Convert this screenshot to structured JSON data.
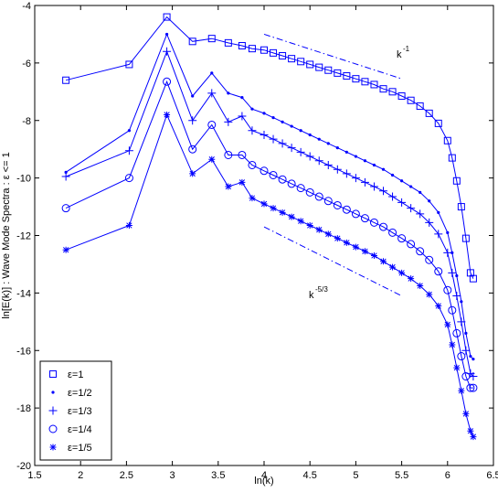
{
  "chart_data": {
    "type": "line",
    "title": "",
    "xlabel": "ln(k)",
    "ylabel": "ln[E(k)] : Wave Mode Spectra :  ε <= 1",
    "xlim": [
      1.5,
      6.5
    ],
    "ylim": [
      -20,
      -4
    ],
    "xticks": [
      "1.5",
      "2",
      "2.5",
      "3",
      "3.5",
      "4",
      "4.5",
      "5",
      "5.5",
      "6",
      "6.5"
    ],
    "yticks": [
      "-4",
      "-6",
      "-8",
      "-10",
      "-12",
      "-14",
      "-16",
      "-18",
      "-20"
    ],
    "line_color": "#0000ff",
    "legend_position": "bottom-left",
    "annotations": [
      {
        "text": "k",
        "exponent": "-1"
      },
      {
        "text": "k",
        "exponent": "-5/3"
      }
    ],
    "reference_lines": [
      {
        "name": "k^-1",
        "x": [
          4.0,
          5.5
        ],
        "y": [
          -5.0,
          -6.55
        ],
        "style": "dashdot"
      },
      {
        "name": "k^-5/3",
        "x": [
          4.0,
          5.5
        ],
        "y": [
          -11.7,
          -14.1
        ],
        "style": "dashdot"
      }
    ],
    "series": [
      {
        "name": "ε=1",
        "marker": "square",
        "x": [
          1.84,
          2.53,
          2.94,
          3.22,
          3.43,
          3.61,
          3.76,
          3.87,
          4.0,
          4.1,
          4.2,
          4.3,
          4.4,
          4.5,
          4.6,
          4.7,
          4.8,
          4.9,
          5.0,
          5.1,
          5.2,
          5.3,
          5.4,
          5.5,
          5.6,
          5.7,
          5.8,
          5.9,
          6.0,
          6.05,
          6.1,
          6.15,
          6.2,
          6.25,
          6.28
        ],
        "y": [
          -6.6,
          -6.05,
          -4.4,
          -5.25,
          -5.15,
          -5.3,
          -5.4,
          -5.5,
          -5.55,
          -5.65,
          -5.75,
          -5.85,
          -5.95,
          -6.05,
          -6.15,
          -6.25,
          -6.35,
          -6.45,
          -6.55,
          -6.65,
          -6.75,
          -6.9,
          -7.0,
          -7.15,
          -7.3,
          -7.5,
          -7.75,
          -8.1,
          -8.7,
          -9.3,
          -10.1,
          -11.0,
          -12.1,
          -13.3,
          -13.5
        ]
      },
      {
        "name": "ε=1/2",
        "marker": "dot",
        "x": [
          1.84,
          2.53,
          2.94,
          3.22,
          3.43,
          3.61,
          3.76,
          3.87,
          4.0,
          4.1,
          4.2,
          4.3,
          4.4,
          4.5,
          4.6,
          4.7,
          4.8,
          4.9,
          5.0,
          5.1,
          5.2,
          5.3,
          5.4,
          5.5,
          5.6,
          5.7,
          5.8,
          5.9,
          6.0,
          6.05,
          6.1,
          6.15,
          6.2,
          6.25,
          6.28
        ],
        "y": [
          -9.8,
          -8.35,
          -5.0,
          -7.15,
          -6.35,
          -7.05,
          -7.2,
          -7.6,
          -7.75,
          -7.9,
          -8.05,
          -8.2,
          -8.35,
          -8.5,
          -8.65,
          -8.8,
          -8.95,
          -9.1,
          -9.25,
          -9.4,
          -9.55,
          -9.7,
          -9.9,
          -10.1,
          -10.3,
          -10.5,
          -10.8,
          -11.2,
          -11.9,
          -12.6,
          -13.4,
          -14.3,
          -15.4,
          -16.2,
          -16.3
        ]
      },
      {
        "name": "ε=1/3",
        "marker": "plus",
        "x": [
          1.84,
          2.53,
          2.94,
          3.22,
          3.43,
          3.61,
          3.76,
          3.87,
          4.0,
          4.1,
          4.2,
          4.3,
          4.4,
          4.5,
          4.6,
          4.7,
          4.8,
          4.9,
          5.0,
          5.1,
          5.2,
          5.3,
          5.4,
          5.5,
          5.6,
          5.7,
          5.8,
          5.9,
          6.0,
          6.05,
          6.1,
          6.15,
          6.2,
          6.25,
          6.28
        ],
        "y": [
          -9.95,
          -9.05,
          -5.6,
          -8.0,
          -7.05,
          -8.05,
          -7.85,
          -8.35,
          -8.5,
          -8.65,
          -8.8,
          -8.95,
          -9.1,
          -9.25,
          -9.4,
          -9.55,
          -9.7,
          -9.85,
          -10.0,
          -10.15,
          -10.3,
          -10.45,
          -10.65,
          -10.85,
          -11.05,
          -11.25,
          -11.55,
          -11.95,
          -12.6,
          -13.3,
          -14.1,
          -15.0,
          -16.0,
          -16.8,
          -16.9
        ]
      },
      {
        "name": "ε=1/4",
        "marker": "circle",
        "x": [
          1.84,
          2.53,
          2.94,
          3.22,
          3.43,
          3.61,
          3.76,
          3.87,
          4.0,
          4.1,
          4.2,
          4.3,
          4.4,
          4.5,
          4.6,
          4.7,
          4.8,
          4.9,
          5.0,
          5.1,
          5.2,
          5.3,
          5.4,
          5.5,
          5.6,
          5.7,
          5.8,
          5.9,
          6.0,
          6.05,
          6.1,
          6.15,
          6.2,
          6.25,
          6.28
        ],
        "y": [
          -11.05,
          -10.0,
          -6.65,
          -9.0,
          -8.15,
          -9.2,
          -9.2,
          -9.55,
          -9.75,
          -9.9,
          -10.05,
          -10.2,
          -10.35,
          -10.5,
          -10.65,
          -10.8,
          -10.95,
          -11.1,
          -11.25,
          -11.4,
          -11.55,
          -11.7,
          -11.9,
          -12.1,
          -12.3,
          -12.55,
          -12.85,
          -13.25,
          -13.9,
          -14.6,
          -15.4,
          -16.2,
          -16.9,
          -17.3,
          -17.3
        ]
      },
      {
        "name": "ε=1/5",
        "marker": "asterisk",
        "x": [
          1.84,
          2.53,
          2.94,
          3.22,
          3.43,
          3.61,
          3.76,
          3.87,
          4.0,
          4.1,
          4.2,
          4.3,
          4.4,
          4.5,
          4.6,
          4.7,
          4.8,
          4.9,
          5.0,
          5.1,
          5.2,
          5.3,
          5.4,
          5.5,
          5.6,
          5.7,
          5.8,
          5.9,
          6.0,
          6.05,
          6.1,
          6.15,
          6.2,
          6.25,
          6.28
        ],
        "y": [
          -12.5,
          -11.65,
          -7.8,
          -9.85,
          -9.35,
          -10.3,
          -10.15,
          -10.7,
          -10.9,
          -11.05,
          -11.2,
          -11.35,
          -11.5,
          -11.65,
          -11.8,
          -11.95,
          -12.1,
          -12.25,
          -12.4,
          -12.55,
          -12.7,
          -12.9,
          -13.1,
          -13.3,
          -13.5,
          -13.75,
          -14.05,
          -14.45,
          -15.1,
          -15.8,
          -16.6,
          -17.4,
          -18.2,
          -18.8,
          -19.0
        ]
      }
    ]
  }
}
